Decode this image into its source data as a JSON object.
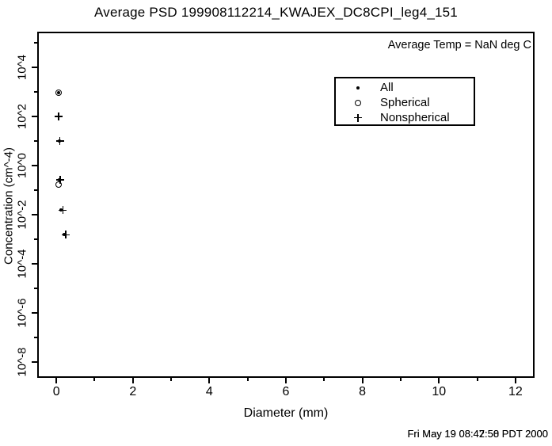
{
  "chart_data": {
    "type": "scatter",
    "title": "Average PSD 199908112214_KWAJEX_DC8CPI_leg4_151",
    "annotation": "Average Temp = NaN deg C",
    "xlabel": "Diameter (mm)",
    "ylabel": "Concentration (cm^-4)",
    "x_scale": "linear",
    "y_scale": "log10",
    "xlim": [
      -0.5,
      12.5
    ],
    "ylim_exp": [
      -8.65,
      5.45
    ],
    "x_major_ticks": [
      0,
      2,
      4,
      6,
      8,
      10,
      12
    ],
    "x_minor_ticks": [
      1,
      3,
      5,
      7,
      9,
      11
    ],
    "x_tick_labels": [
      "0",
      "2",
      "4",
      "6",
      "8",
      "10",
      "12"
    ],
    "y_major_tick_exps": [
      4,
      2,
      0,
      -2,
      -4,
      -6,
      -8
    ],
    "y_minor_tick_exps": [
      5,
      3,
      1,
      -1,
      -3,
      -5,
      -7
    ],
    "y_tick_labels": [
      "10^4",
      "10^2",
      "10^0",
      "10^-2",
      "10^-4",
      "10^-6",
      "10^-8"
    ],
    "grid": false,
    "legend": {
      "position": "inside-top-right-of-center",
      "entries": [
        {
          "label": "All",
          "marker": "dot"
        },
        {
          "label": "Spherical",
          "marker": "circle"
        },
        {
          "label": "Nonspherical",
          "marker": "plus"
        }
      ]
    },
    "series": [
      {
        "name": "All",
        "marker": "dot",
        "points": [
          [
            0.05,
            900
          ],
          [
            0.07,
            10
          ],
          [
            0.08,
            0.26
          ],
          [
            0.12,
            0.015
          ],
          [
            0.2,
            0.0015
          ]
        ]
      },
      {
        "name": "Spherical",
        "marker": "circle",
        "points": [
          [
            0.06,
            900
          ],
          [
            0.05,
            0.17
          ]
        ]
      },
      {
        "name": "Nonspherical",
        "marker": "plus",
        "points": [
          [
            0.06,
            100
          ],
          [
            0.09,
            10
          ],
          [
            0.1,
            0.26
          ],
          [
            0.17,
            0.015
          ],
          [
            0.25,
            0.0015
          ]
        ]
      }
    ]
  },
  "footer": {
    "timestamp_front": "Fri May 19 08:42:58 PDT 2000",
    "timestamp_back": "Fri May 19 08:47:50 PDT 2000"
  },
  "colors": {
    "foreground": "#000000",
    "background": "#ffffff"
  }
}
